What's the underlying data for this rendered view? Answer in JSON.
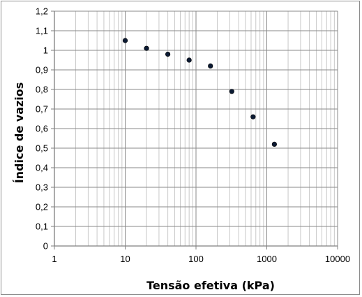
{
  "chart_data": {
    "type": "scatter",
    "title": "",
    "xlabel": "Tensão efetiva (kPa)",
    "ylabel": "Índice de vazios",
    "x_scale": "log",
    "xlim": [
      1,
      10000
    ],
    "ylim": [
      0,
      1.2
    ],
    "x_tick_values": [
      1,
      10,
      100,
      1000,
      10000
    ],
    "x_tick_labels": [
      "1",
      "10",
      "100",
      "1000",
      "10000"
    ],
    "y_tick_values": [
      0,
      0.1,
      0.2,
      0.3,
      0.4,
      0.5,
      0.6,
      0.7,
      0.8,
      0.9,
      1.0,
      1.1,
      1.2
    ],
    "y_tick_labels": [
      "0",
      "0,1",
      "0,2",
      "0,3",
      "0,4",
      "0,5",
      "0,6",
      "0,7",
      "0,8",
      "0,9",
      "1",
      "1,1",
      "1,2"
    ],
    "grid": true,
    "legend": "none",
    "marker_color": "#0b1a33",
    "series": [
      {
        "x": [
          10,
          20,
          40,
          80,
          160,
          320,
          640,
          1280
        ],
        "y": [
          1.05,
          1.01,
          0.98,
          0.95,
          0.92,
          0.79,
          0.66,
          0.52
        ]
      }
    ]
  }
}
